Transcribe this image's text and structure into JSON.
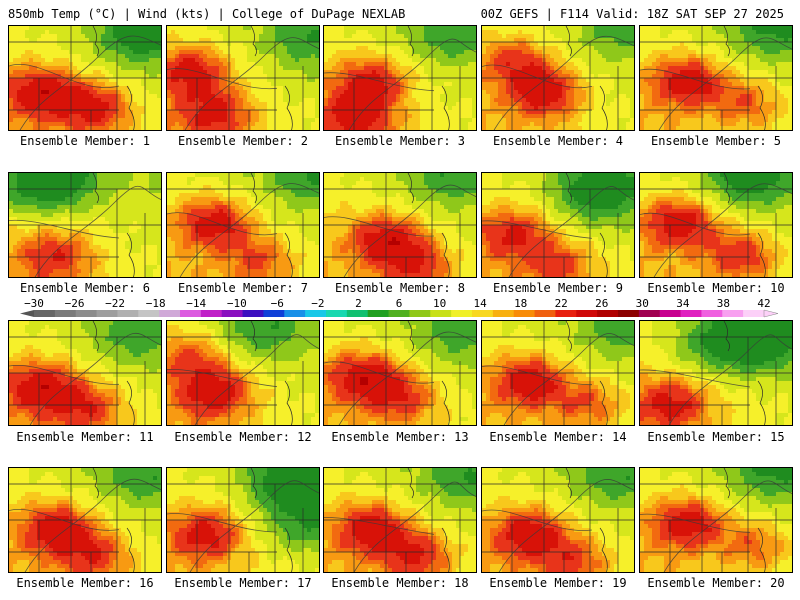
{
  "header": {
    "left": "850mb Temp (°C) | Wind (kts) | College of DuPage NEXLAB",
    "right": "00Z GEFS | F114 Valid: 18Z SAT SEP 27 2025"
  },
  "panels": [
    {
      "label": "Ensemble Member: 1",
      "heat": [
        [
          0.2,
          0.6,
          1.0
        ],
        [
          0.55,
          0.75,
          0.9
        ]
      ],
      "cool": [
        [
          0.85,
          0.05,
          0.9
        ]
      ]
    },
    {
      "label": "Ensemble Member: 2",
      "heat": [
        [
          0.15,
          0.4,
          0.9
        ],
        [
          0.3,
          0.8,
          0.8
        ]
      ],
      "cool": [
        [
          0.9,
          0.1,
          0.5
        ]
      ]
    },
    {
      "label": "Ensemble Member: 3",
      "heat": [
        [
          0.3,
          0.5,
          0.9
        ],
        [
          0.2,
          0.85,
          0.8
        ]
      ],
      "cool": [
        [
          0.8,
          0.05,
          0.5
        ]
      ]
    },
    {
      "label": "Ensemble Member: 4",
      "heat": [
        [
          0.4,
          0.6,
          1.0
        ],
        [
          0.2,
          0.3,
          0.7
        ]
      ],
      "cool": [
        [
          0.9,
          0.0,
          0.4
        ]
      ]
    },
    {
      "label": "Ensemble Member: 5",
      "heat": [
        [
          0.3,
          0.5,
          1.0
        ],
        [
          0.7,
          0.7,
          0.6
        ]
      ],
      "cool": [
        [
          0.85,
          0.0,
          0.6
        ]
      ]
    },
    {
      "label": "Ensemble Member: 6",
      "heat": [
        [
          0.3,
          0.75,
          0.7
        ]
      ],
      "cool": [
        [
          0.3,
          0.05,
          0.9
        ],
        [
          0.05,
          0.1,
          0.5
        ]
      ]
    },
    {
      "label": "Ensemble Member: 7",
      "heat": [
        [
          0.3,
          0.45,
          1.0
        ],
        [
          0.6,
          0.8,
          0.6
        ]
      ],
      "cool": [
        [
          0.9,
          0.0,
          0.5
        ]
      ]
    },
    {
      "label": "Ensemble Member: 8",
      "heat": [
        [
          0.4,
          0.6,
          1.0
        ],
        [
          0.6,
          0.85,
          0.7
        ]
      ],
      "cool": [
        [
          0.8,
          0.0,
          0.5
        ]
      ]
    },
    {
      "label": "Ensemble Member: 9",
      "heat": [
        [
          0.2,
          0.55,
          0.8
        ],
        [
          0.5,
          0.85,
          0.6
        ]
      ],
      "cool": [
        [
          0.75,
          0.15,
          1.0
        ]
      ]
    },
    {
      "label": "Ensemble Member: 10",
      "heat": [
        [
          0.25,
          0.45,
          1.0
        ],
        [
          0.65,
          0.75,
          0.8
        ]
      ],
      "cool": [
        [
          0.7,
          0.0,
          0.9
        ]
      ]
    },
    {
      "label": "Ensemble Member: 11",
      "heat": [
        [
          0.2,
          0.6,
          1.0
        ],
        [
          0.5,
          0.8,
          0.7
        ]
      ],
      "cool": [
        [
          0.8,
          0.1,
          0.5
        ]
      ]
    },
    {
      "label": "Ensemble Member: 12",
      "heat": [
        [
          0.3,
          0.65,
          1.0
        ],
        [
          0.15,
          0.3,
          0.6
        ]
      ],
      "cool": [
        [
          0.6,
          0.05,
          0.6
        ]
      ]
    },
    {
      "label": "Ensemble Member: 13",
      "heat": [
        [
          0.25,
          0.5,
          1.0
        ],
        [
          0.5,
          0.7,
          0.7
        ]
      ],
      "cool": [
        [
          0.85,
          0.1,
          0.4
        ]
      ]
    },
    {
      "label": "Ensemble Member: 14",
      "heat": [
        [
          0.3,
          0.55,
          1.0
        ],
        [
          0.7,
          0.75,
          0.6
        ]
      ],
      "cool": [
        [
          0.9,
          0.05,
          0.4
        ]
      ]
    },
    {
      "label": "Ensemble Member: 15",
      "heat": [
        [
          0.2,
          0.75,
          0.8
        ]
      ],
      "cool": [
        [
          0.75,
          0.15,
          1.2
        ],
        [
          0.45,
          0.2,
          0.5
        ]
      ]
    },
    {
      "label": "Ensemble Member: 16",
      "heat": [
        [
          0.3,
          0.55,
          1.0
        ],
        [
          0.55,
          0.8,
          0.7
        ]
      ],
      "cool": [
        [
          0.85,
          0.05,
          0.5
        ]
      ]
    },
    {
      "label": "Ensemble Member: 17",
      "heat": [
        [
          0.25,
          0.6,
          0.9
        ]
      ],
      "cool": [
        [
          0.8,
          0.1,
          1.0
        ],
        [
          0.9,
          0.5,
          0.6
        ]
      ]
    },
    {
      "label": "Ensemble Member: 18",
      "heat": [
        [
          0.3,
          0.55,
          1.0
        ],
        [
          0.6,
          0.8,
          0.8
        ]
      ],
      "cool": [
        [
          0.9,
          0.05,
          0.5
        ]
      ]
    },
    {
      "label": "Ensemble Member: 19",
      "heat": [
        [
          0.3,
          0.6,
          1.0
        ],
        [
          0.6,
          0.85,
          0.6
        ]
      ],
      "cool": [
        [
          0.85,
          0.05,
          0.5
        ]
      ]
    },
    {
      "label": "Ensemble Member: 20",
      "heat": [
        [
          0.3,
          0.5,
          1.0
        ],
        [
          0.75,
          0.7,
          0.6
        ]
      ],
      "cool": [
        [
          0.85,
          0.0,
          0.6
        ]
      ]
    }
  ],
  "colorbar": {
    "ticks": [
      "−30",
      "−26",
      "−22",
      "−18",
      "−14",
      "−10",
      "−6",
      "−2",
      "2",
      "6",
      "10",
      "14",
      "18",
      "22",
      "26",
      "30",
      "34",
      "38",
      "42"
    ],
    "colors": [
      "#666666",
      "#7a7a7a",
      "#8c8c8c",
      "#9e9e9e",
      "#b0b0b0",
      "#c4c4c4",
      "#d0a8d8",
      "#dc5ae0",
      "#c020c8",
      "#8a10c0",
      "#3c10c0",
      "#1040d8",
      "#1890e8",
      "#18c8e8",
      "#18d8b0",
      "#10c070",
      "#20a020",
      "#50b020",
      "#90c818",
      "#c8e018",
      "#f0f028",
      "#f8d820",
      "#f8b010",
      "#f88c08",
      "#f06010",
      "#e82010",
      "#d00808",
      "#b00000",
      "#8c0000",
      "#a00050",
      "#c80090",
      "#e020c0",
      "#f060e0",
      "#f8a0f0",
      "#fcd0f8"
    ]
  }
}
